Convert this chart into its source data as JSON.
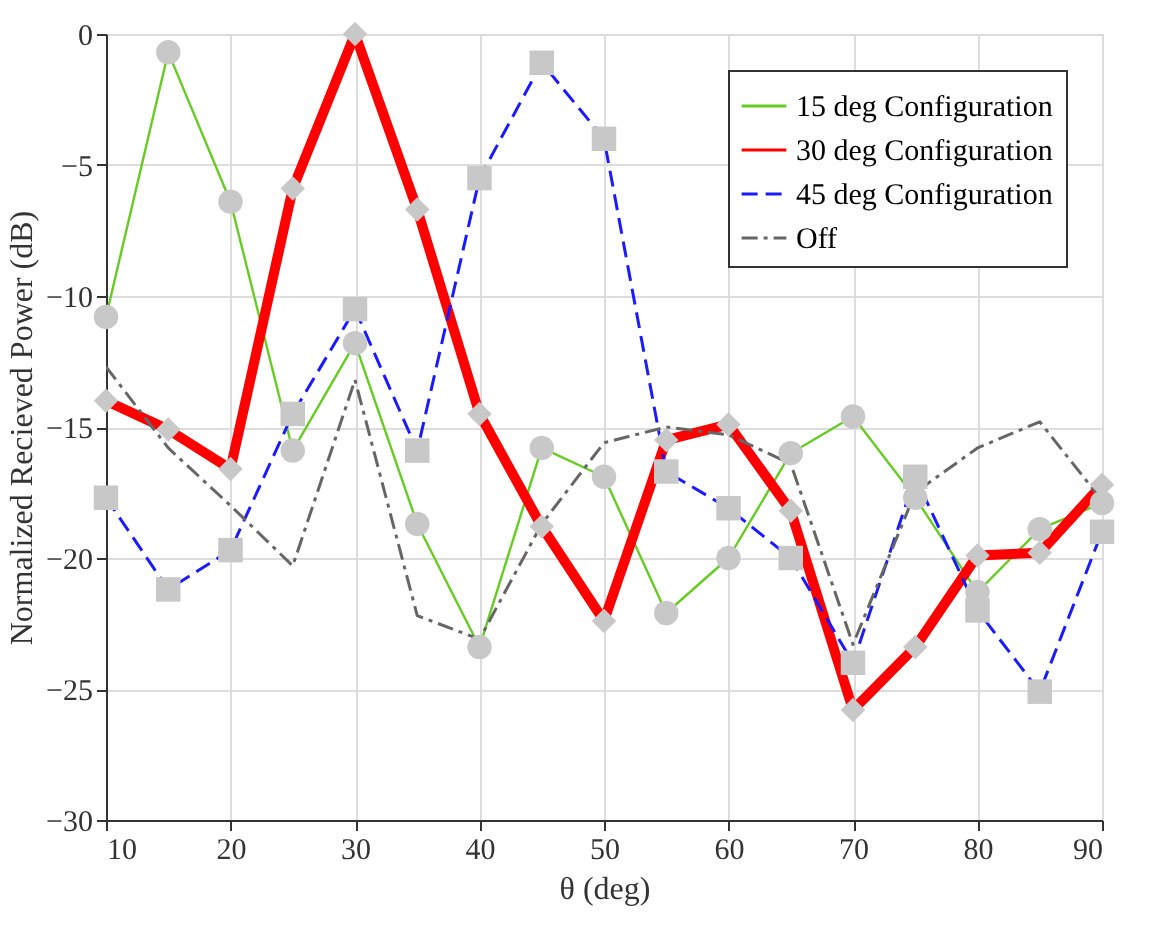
{
  "chart_data": {
    "type": "line",
    "xlabel": "θ (deg)",
    "ylabel": "Normalized Recieved Power (dB)",
    "x": [
      10,
      15,
      20,
      25,
      30,
      35,
      40,
      45,
      50,
      55,
      60,
      65,
      70,
      75,
      80,
      85,
      90
    ],
    "series": [
      {
        "name": "15 deg Configuration",
        "color": "#66cc22",
        "marker": "circle",
        "line_style": "solid",
        "values": [
          -10.8,
          -0.7,
          -6.4,
          -15.9,
          -11.8,
          -18.7,
          -23.4,
          -15.8,
          -16.9,
          -22.1,
          -20.0,
          -16.0,
          -14.6,
          -17.7,
          -21.3,
          -18.9,
          -17.9
        ]
      },
      {
        "name": "30 deg Configuration",
        "color": "#ff0000",
        "marker": "diamond",
        "line_style": "solid",
        "values": [
          -14.0,
          -15.1,
          -16.6,
          -5.9,
          0,
          -6.7,
          -14.5,
          -18.8,
          -22.4,
          -15.5,
          -14.9,
          -18.2,
          -25.8,
          -23.4,
          -19.9,
          -19.8,
          -17.2
        ]
      },
      {
        "name": "45 deg Configuration",
        "color": "#1a1aff",
        "marker": "square",
        "line_style": "dashed",
        "values": [
          -17.7,
          -21.2,
          -19.7,
          -14.5,
          -10.5,
          -15.9,
          -5.5,
          -1.1,
          -4.0,
          -16.7,
          -18.1,
          -20.0,
          -24.0,
          -16.9,
          -22.0,
          -25.1,
          -19.0
        ]
      },
      {
        "name": "Off",
        "color": "#666666",
        "marker": "none",
        "line_style": "dashdot",
        "values": [
          -12.7,
          -15.8,
          -18.0,
          -20.3,
          -13.2,
          -22.2,
          -23.1,
          -18.7,
          -15.6,
          -15.0,
          -15.3,
          -16.4,
          -23.3,
          -17.5,
          -15.8,
          -14.8,
          -17.8
        ]
      }
    ],
    "xlim": [
      10,
      90
    ],
    "xticks": [
      10,
      20,
      30,
      40,
      50,
      60,
      70,
      80,
      90
    ],
    "ylim": [
      -30,
      0
    ],
    "yticks": [
      -30,
      -25,
      -20,
      -15,
      -10,
      -5,
      0
    ],
    "grid": true,
    "legend": "top right"
  }
}
